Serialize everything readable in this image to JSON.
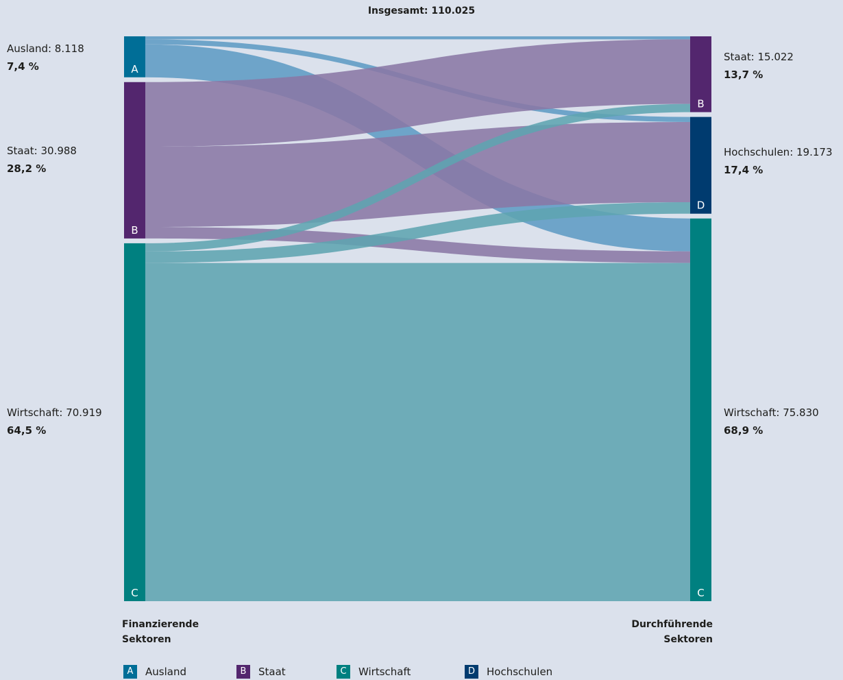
{
  "chart_data": {
    "type": "sankey",
    "title": "Insgesamt: 110.025",
    "colors": {
      "A": "#006e97",
      "B": "#53266e",
      "C": "#008080",
      "D": "#003b6f"
    },
    "link_colors": {
      "A": "#5e9bc4",
      "B": "#8a78a5",
      "C": "#5fa4b0"
    },
    "source_axis_title": "Finanzierende\nSektoren",
    "target_axis_title": "Durchführende\nSektoren",
    "sources": [
      {
        "key": "A",
        "name": "Ausland",
        "label": "Ausland: 8.118",
        "pct": "7,4 %",
        "value": 8118
      },
      {
        "key": "B",
        "name": "Staat",
        "label": "Staat: 30.988",
        "pct": "28,2 %",
        "value": 30988
      },
      {
        "key": "C",
        "name": "Wirtschaft",
        "label": "Wirtschaft: 70.919",
        "pct": "64,5 %",
        "value": 70919
      }
    ],
    "targets": [
      {
        "key": "B",
        "name": "Staat",
        "label": "Staat: 15.022",
        "pct": "13,7 %",
        "value": 15022
      },
      {
        "key": "D",
        "name": "Hochschulen",
        "label": "Hochschulen: 19.173",
        "pct": "17,4 %",
        "value": 19173
      },
      {
        "key": "C",
        "name": "Wirtschaft",
        "label": "Wirtschaft: 75.830",
        "pct": "68,9 %",
        "value": 75830
      }
    ],
    "links": [
      {
        "source": "A",
        "target": "B",
        "value": 600
      },
      {
        "source": "A",
        "target": "D",
        "value": 1000
      },
      {
        "source": "A",
        "target": "C",
        "value": 6518
      },
      {
        "source": "B",
        "target": "B",
        "value": 12800
      },
      {
        "source": "B",
        "target": "D",
        "value": 15900
      },
      {
        "source": "B",
        "target": "C",
        "value": 2288
      },
      {
        "source": "C",
        "target": "B",
        "value": 1622
      },
      {
        "source": "C",
        "target": "D",
        "value": 2273
      },
      {
        "source": "C",
        "target": "C",
        "value": 67024
      }
    ]
  },
  "legend": [
    {
      "key": "A",
      "label": "Ausland"
    },
    {
      "key": "B",
      "label": "Staat"
    },
    {
      "key": "C",
      "label": "Wirtschaft"
    },
    {
      "key": "D",
      "label": "Hochschulen"
    }
  ]
}
